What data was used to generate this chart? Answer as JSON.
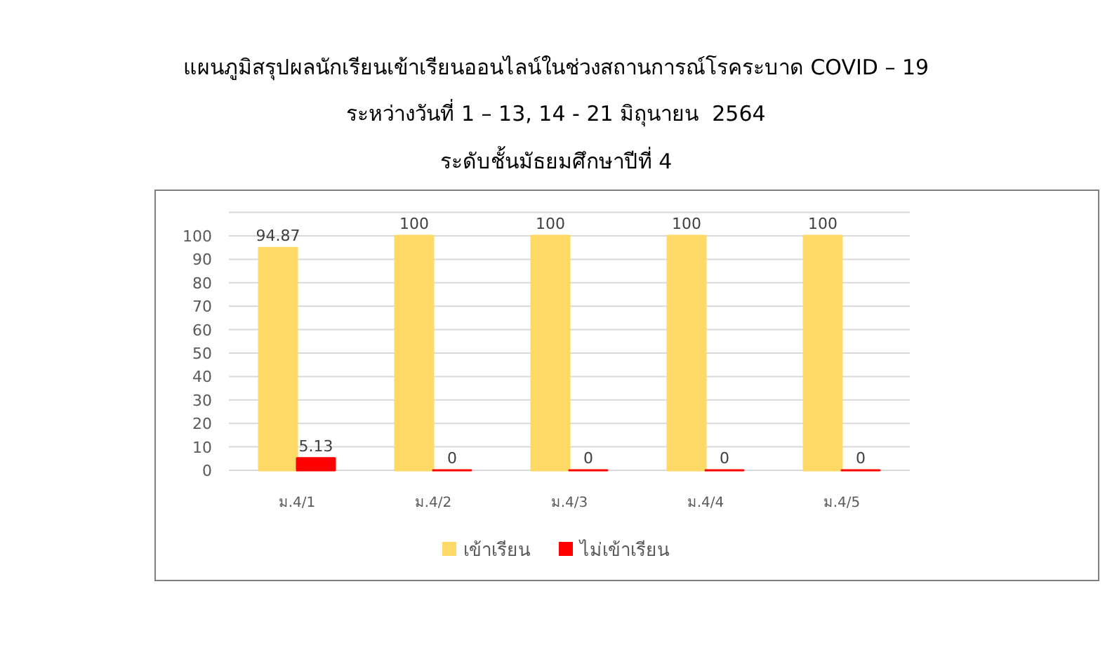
{
  "chart_data": {
    "type": "bar",
    "title": "แผนภูมิสรุปผลนักเรียนเข้าเรียนออนไลน์ในช่วงสถานการณ์โรคระบาด COVID – 19",
    "subtitle": "ระหว่างวันที่ 1 – 13, 14 - 21 มิถุนายน  2564\nระดับชั้นมัธยมศึกษาปีที่ 4",
    "categories": [
      "ม.4/1",
      "ม.4/2",
      "ม.4/3",
      "ม.4/4",
      "ม.4/5"
    ],
    "series": [
      {
        "name": "เข้าเรียน",
        "color": "#ffd966",
        "values": [
          94.87,
          100,
          100,
          100,
          100
        ]
      },
      {
        "name": "ไม่เข้าเรียน",
        "color": "#ff0000",
        "values": [
          5.13,
          0,
          0,
          0,
          0
        ]
      }
    ],
    "ylim": [
      0,
      110
    ],
    "yticks": [
      0,
      10,
      20,
      30,
      40,
      50,
      60,
      70,
      80,
      90,
      100,
      {
        "value": 110,
        "label": null
      }
    ],
    "grid": "y",
    "legend": "bottom",
    "data_labels": true
  }
}
